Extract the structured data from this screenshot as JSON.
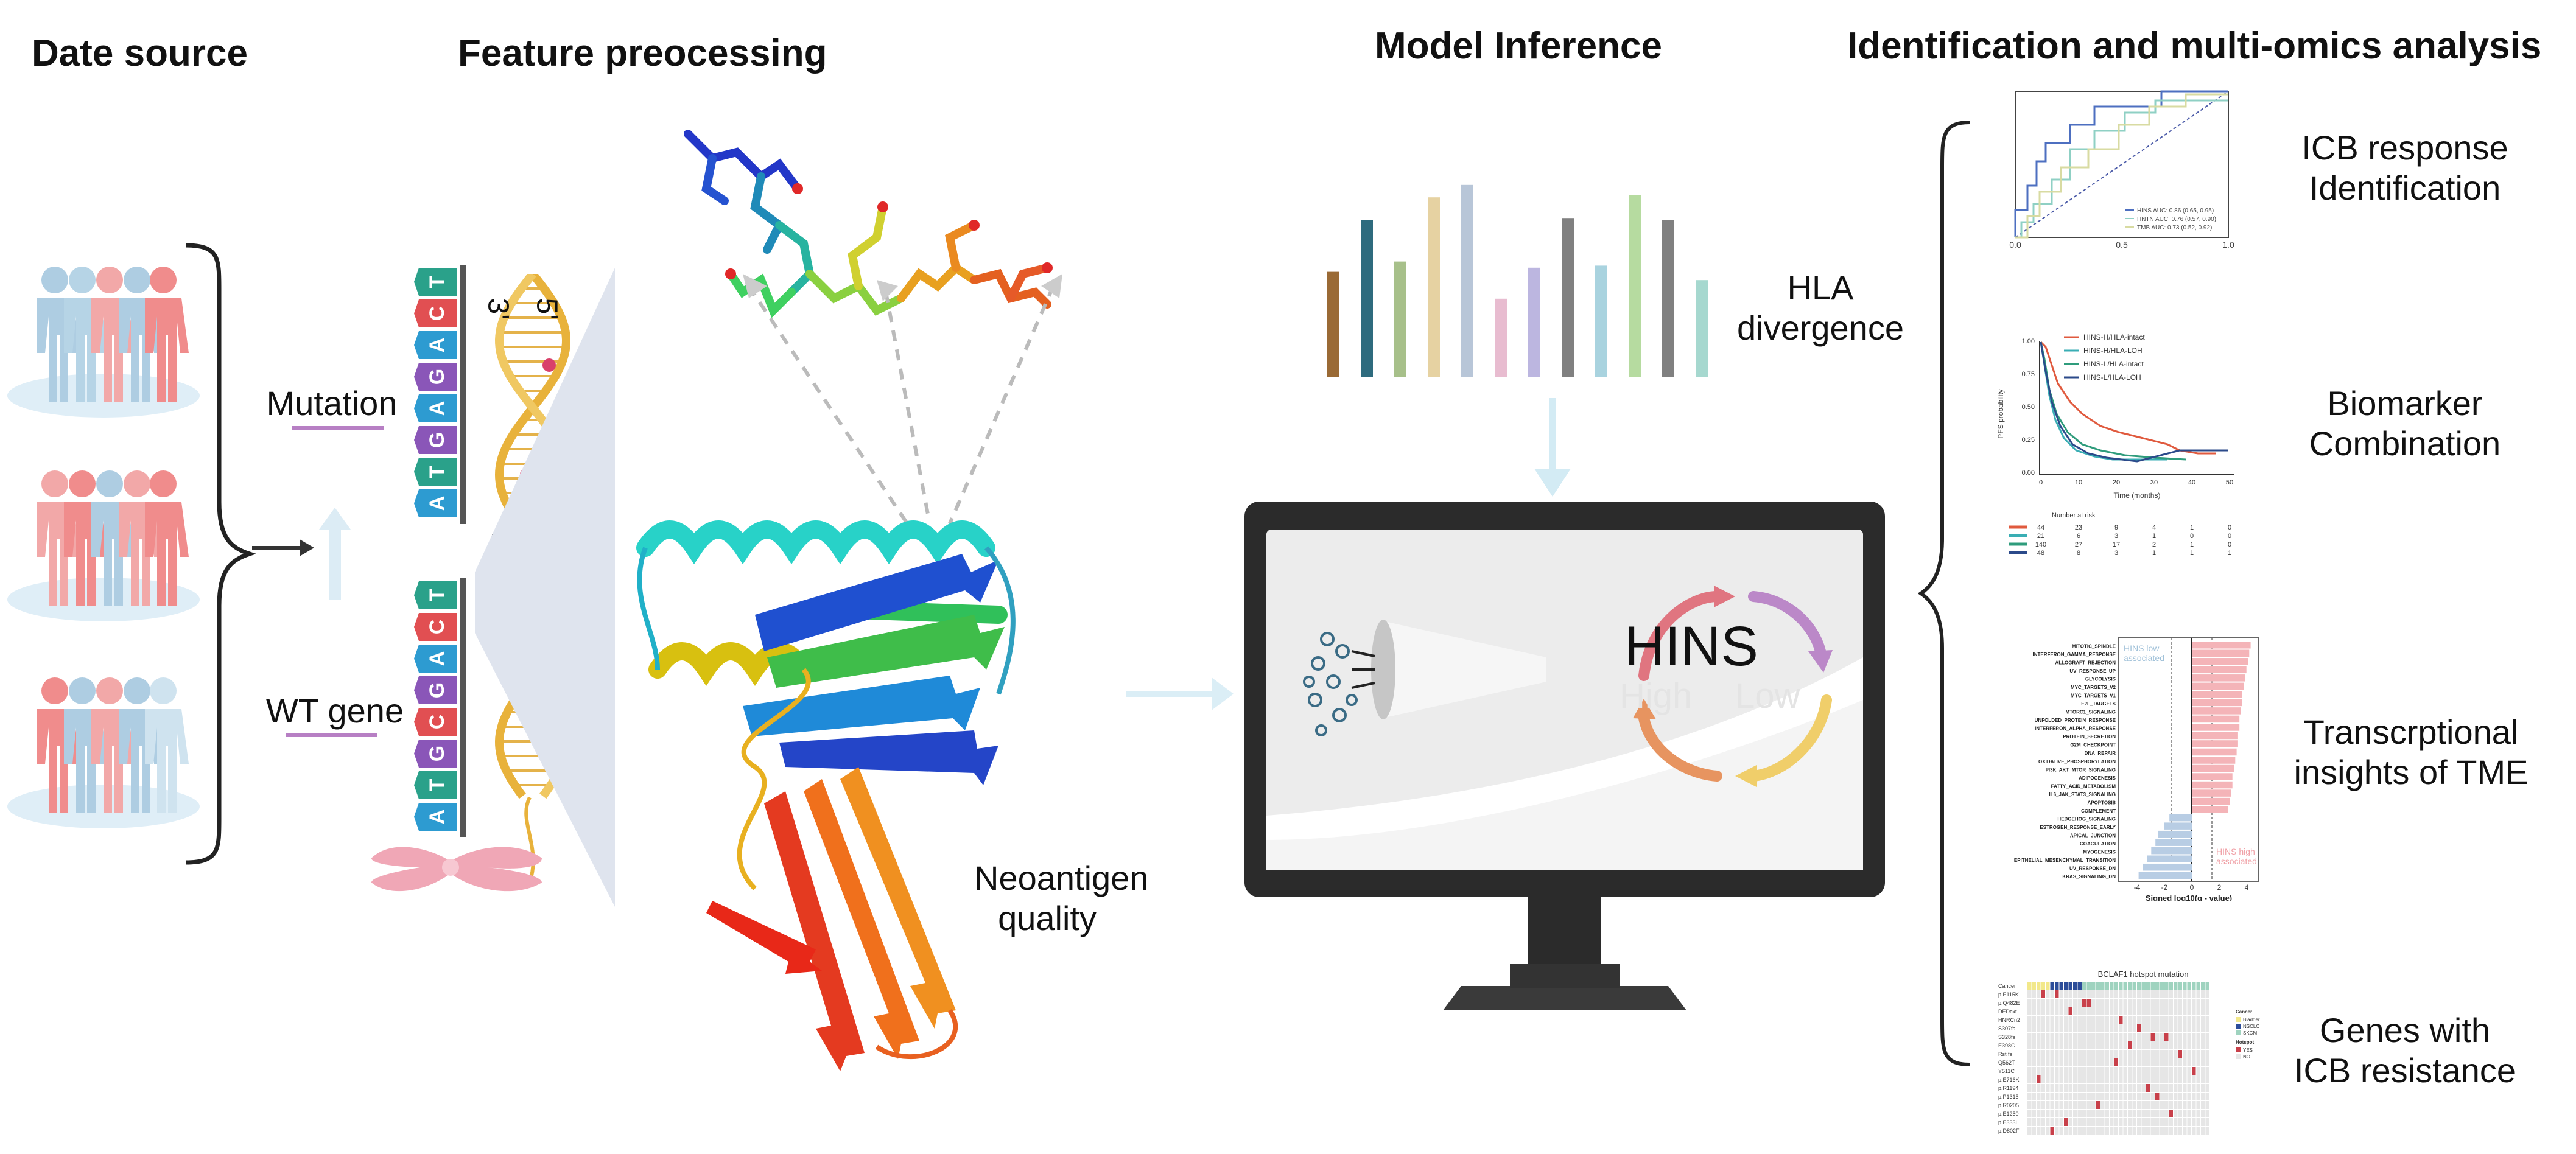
{
  "headers": {
    "data_source": "Date source",
    "feature": "Feature preocessing",
    "model": "Model Inference",
    "identification": "Identification and  multi-omics analysis"
  },
  "left": {
    "mutation": "Mutation",
    "wt_gene": "WT gene",
    "seq_top": [
      "T",
      "C",
      "A",
      "G",
      "A",
      "G",
      "T",
      "A"
    ],
    "seq_bottom": [
      "T",
      "C",
      "A",
      "G",
      "C",
      "G",
      "T",
      "A"
    ],
    "seq_top_text": "TCAGAGTA",
    "seq_bottom_text": "TCAGCGTA",
    "strand_3": "3'",
    "strand_5": "5'"
  },
  "middle": {
    "neoantigen": [
      "Neoantigen",
      "quality"
    ],
    "hla": [
      "HLA",
      "divergence"
    ],
    "hins": "HINS",
    "high": "High",
    "low": "Low",
    "bar_values": [
      0.51,
      0.76,
      0.56,
      0.87,
      0.93,
      0.38,
      0.53,
      0.77,
      0.54,
      0.88,
      0.76,
      0.47
    ],
    "bar_colors": [
      "#9a6a35",
      "#2e6b7e",
      "#a7c08a",
      "#e6d2a2",
      "#b8c6d8",
      "#e8bcd0",
      "#bcb6e0",
      "#808080",
      "#a9d3df",
      "#b6dba0",
      "#808080",
      "#a6d8cf"
    ]
  },
  "right": {
    "items": [
      [
        "ICB response",
        "Identification"
      ],
      [
        "Biomarker",
        "Combination"
      ],
      [
        "Transcrptional",
        "insights of TME"
      ],
      [
        "Genes with",
        "ICB resistance"
      ]
    ],
    "roc": {
      "ticks_x": [
        "0.0",
        "0.5",
        "1.0"
      ],
      "legend": [
        "HINS AUC: 0.86 (0.65, 0.95)",
        "HNTN AUC: 0.76 (0.57, 0.90)",
        "TMB AUC: 0.73 (0.52, 0.92)"
      ]
    },
    "km": {
      "legend": [
        "HINS-H/HLA-intact",
        "HINS-H/HLA-LOH",
        "HINS-L/HLA-intact",
        "HINS-L/HLA-LOH"
      ],
      "colors": [
        "#e05a3e",
        "#3aaeb4",
        "#2f9c7c",
        "#2b4a8a"
      ],
      "ylabel": "PFS probability",
      "xlabel": "Time (months)",
      "yticks": [
        "1.00",
        "0.75",
        "0.50",
        "0.25",
        "0.00"
      ],
      "xticks": [
        "0",
        "10",
        "20",
        "30",
        "40",
        "50"
      ],
      "risk_title": "Number at risk",
      "risk": [
        [
          "44",
          "23",
          "9",
          "4",
          "1",
          "0"
        ],
        [
          "21",
          "6",
          "3",
          "1",
          "0",
          "0"
        ],
        [
          "140",
          "27",
          "17",
          "2",
          "1",
          "0"
        ],
        [
          "48",
          "8",
          "3",
          "1",
          "1",
          "1"
        ]
      ]
    },
    "gsea": {
      "terms": [
        "MITOTIC_SPINDLE",
        "INTERFERON_GAMMA_RESPONSE",
        "ALLOGRAFT_REJECTION",
        "UV_RESPONSE_UP",
        "GLYCOLYSIS",
        "MYC_TARGETS_V2",
        "MYC_TARGETS_V1",
        "E2F_TARGETS",
        "MTORC1_SIGNALING",
        "UNFOLDED_PROTEIN_RESPONSE",
        "INTERFERON_ALPHA_RESPONSE",
        "PROTEIN_SECRETION",
        "G2M_CHECKPOINT",
        "DNA_REPAIR",
        "OXIDATIVE_PHOSPHORYLATION",
        "PI3K_AKT_MTOR_SIGNALING",
        "ADIPOGENESIS",
        "FATTY_ACID_METABOLISM",
        "IL6_JAK_STAT3_SIGNALING",
        "APOPTOSIS",
        "COMPLEMENT",
        "HEDGEHOG_SIGNALING",
        "ESTROGEN_RESPONSE_EARLY",
        "APICAL_JUNCTION",
        "COAGULATION",
        "MYOGENESIS",
        "EPITHELIAL_MESENCHYMAL_TRANSITION",
        "UV_RESPONSE_DN",
        "KRAS_SIGNALING_DN"
      ],
      "values": [
        4.2,
        4.1,
        4.0,
        3.9,
        3.8,
        3.7,
        3.6,
        3.6,
        3.5,
        3.4,
        3.4,
        3.3,
        3.3,
        3.2,
        3.1,
        3.0,
        2.9,
        2.9,
        2.8,
        2.7,
        2.6,
        -1.6,
        -2.0,
        -2.4,
        -2.6,
        -2.9,
        -3.2,
        -3.5,
        -3.8
      ],
      "low_label": [
        "HINS low",
        "associated"
      ],
      "high_label": [
        "HINS high",
        "associated"
      ],
      "xlabel": "Signed log10(q - value)",
      "xticks": [
        "-4",
        "-2",
        "0",
        "2",
        "4"
      ]
    },
    "heatmap": {
      "title": "BCLAF1 hotspot mutation",
      "rows": [
        "Cancer",
        "p.E115K",
        "p.Q482E",
        "DEDcxt",
        "HNRCn2",
        "S307fs",
        "S328fs",
        "E398G",
        "Rst fs",
        "Q562T",
        "Y511C",
        "p.E716K",
        "p.R1194",
        "p.P1315",
        "p.R0205",
        "p.E1250",
        "p.E333L",
        "p.D802F"
      ],
      "legend_cancer_title": "Cancer",
      "legend_cancer": [
        "Bladder",
        "NSCLC",
        "SKCM"
      ],
      "legend_hot_title": "Hotspot",
      "legend_hot": [
        "YES",
        "NO"
      ]
    }
  }
}
